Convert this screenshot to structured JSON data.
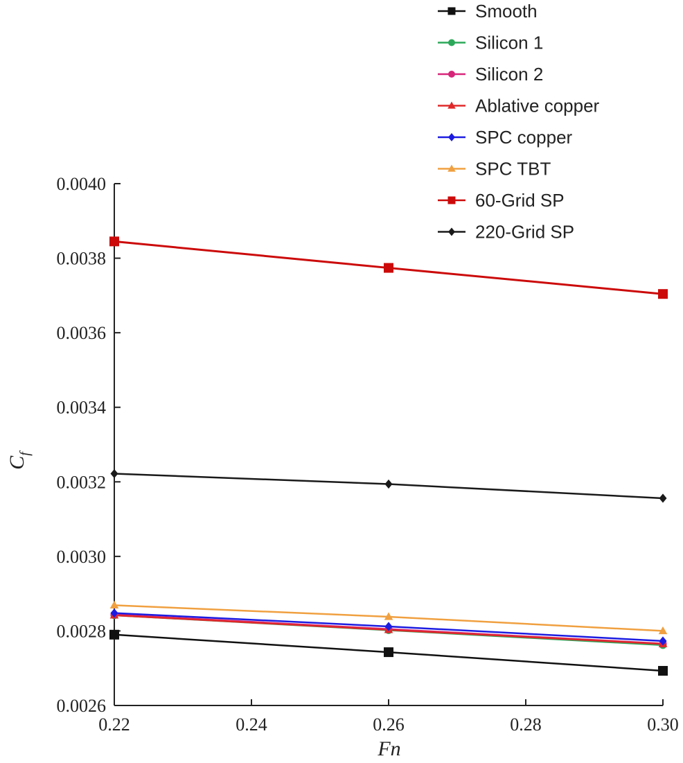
{
  "chart_data": {
    "type": "line",
    "x": [
      0.22,
      0.26,
      0.3
    ],
    "xlabel": "Fn",
    "ylabel": {
      "main": "C",
      "sub": "f"
    },
    "xlim": [
      0.22,
      0.3
    ],
    "ylim": [
      0.0026,
      0.004
    ],
    "xticks": [
      "0.22",
      "0.24",
      "0.26",
      "0.28",
      "0.30"
    ],
    "yticks": [
      "0.0026",
      "0.0028",
      "0.0030",
      "0.0032",
      "0.0034",
      "0.0036",
      "0.0038",
      "0.0040"
    ],
    "grid": false,
    "legend_position": "top-right",
    "series": [
      {
        "name": "Smooth",
        "color": "#111111",
        "marker": "square",
        "values": [
          0.00279,
          0.002743,
          0.002693
        ]
      },
      {
        "name": "Silicon 1",
        "color": "#2ca85a",
        "marker": "circle",
        "values": [
          0.002842,
          0.002802,
          0.002762
        ]
      },
      {
        "name": "Silicon 2",
        "color": "#d6267a",
        "marker": "circle",
        "values": [
          0.002844,
          0.002805,
          0.002766
        ]
      },
      {
        "name": "Ablative copper",
        "color": "#e0282a",
        "marker": "triangle",
        "values": [
          0.002842,
          0.002803,
          0.002765
        ]
      },
      {
        "name": "SPC copper",
        "color": "#1c1ce0",
        "marker": "diamond",
        "values": [
          0.002848,
          0.002812,
          0.002773
        ]
      },
      {
        "name": "SPC TBT",
        "color": "#f0a040",
        "marker": "triangle",
        "values": [
          0.002869,
          0.002838,
          0.0028
        ]
      },
      {
        "name": "60-Grid SP",
        "color": "#cc0a0a",
        "marker": "square",
        "values": [
          0.003845,
          0.003774,
          0.003704
        ]
      },
      {
        "name": "220-Grid SP",
        "color": "#1a1a1a",
        "marker": "diamond",
        "values": [
          0.003222,
          0.003194,
          0.003156
        ]
      }
    ]
  }
}
